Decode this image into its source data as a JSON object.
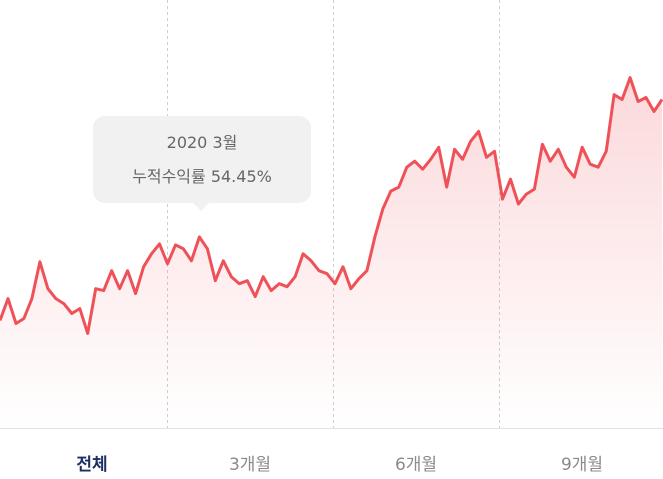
{
  "chart_data": {
    "type": "line",
    "series": [
      {
        "color": "#ef5159",
        "values": [
          108,
          130,
          105,
          110,
          130,
          167,
          140,
          130,
          125,
          115,
          120,
          95,
          140,
          138,
          158,
          140,
          158,
          135,
          162,
          175,
          185,
          165,
          184,
          180,
          168,
          192,
          180,
          148,
          168,
          152,
          145,
          148,
          132,
          152,
          138,
          145,
          142,
          152,
          175,
          168,
          158,
          155,
          145,
          162,
          140,
          150,
          158,
          192,
          220,
          238,
          242,
          262,
          268,
          260,
          270,
          282,
          242,
          280,
          270,
          288,
          298,
          272,
          278,
          230,
          250,
          225,
          235,
          240,
          285,
          268,
          280,
          262,
          252,
          282,
          265,
          262,
          278,
          335,
          330,
          352,
          328,
          332,
          318,
          330
        ]
      }
    ],
    "ylim": [
      0,
      430
    ],
    "tooltip": {
      "title": "2020 3월",
      "label": "누적수익률 54.45%"
    },
    "tabs": [
      "전체",
      "3개월",
      "6개월",
      "9개월"
    ]
  }
}
